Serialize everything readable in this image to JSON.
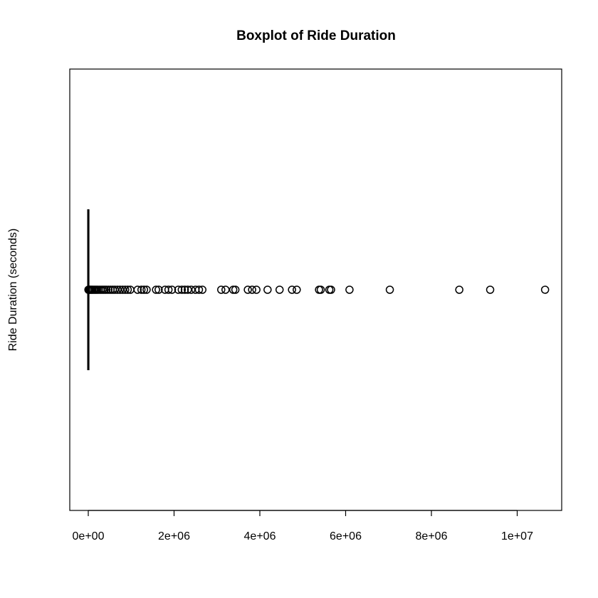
{
  "chart_data": {
    "type": "boxplot",
    "orientation": "horizontal",
    "title": "Boxplot of Ride Duration",
    "xlabel": "",
    "ylabel": "Ride Duration (seconds)",
    "xlim": [
      -400000,
      11100000
    ],
    "x_ticks": [
      {
        "value": 0,
        "label": "0e+00"
      },
      {
        "value": 2000000,
        "label": "2e+06"
      },
      {
        "value": 4000000,
        "label": "4e+06"
      },
      {
        "value": 6000000,
        "label": "6e+06"
      },
      {
        "value": 8000000,
        "label": "8e+06"
      },
      {
        "value": 10000000,
        "label": "1e+07"
      }
    ],
    "grid": false,
    "box": {
      "min": 0,
      "q1": 400,
      "median": 700,
      "q3": 1200,
      "max": 2400
    },
    "outliers": [
      3000,
      8000,
      15000,
      25000,
      40000,
      60000,
      80000,
      100000,
      130000,
      160000,
      190000,
      220000,
      260000,
      300000,
      340000,
      380000,
      420000,
      470000,
      520000,
      570000,
      620000,
      680000,
      740000,
      800000,
      860000,
      920000,
      980000,
      1150000,
      1240000,
      1300000,
      1360000,
      1580000,
      1640000,
      1790000,
      1870000,
      1950000,
      2100000,
      2180000,
      2250000,
      2320000,
      2400000,
      2500000,
      2580000,
      2660000,
      3100000,
      3200000,
      3380000,
      3430000,
      3720000,
      3820000,
      3920000,
      4180000,
      4460000,
      4750000,
      4860000,
      5380000,
      5420000,
      5620000,
      5660000,
      6090000,
      7030000,
      8650000,
      9370000,
      10650000
    ]
  }
}
